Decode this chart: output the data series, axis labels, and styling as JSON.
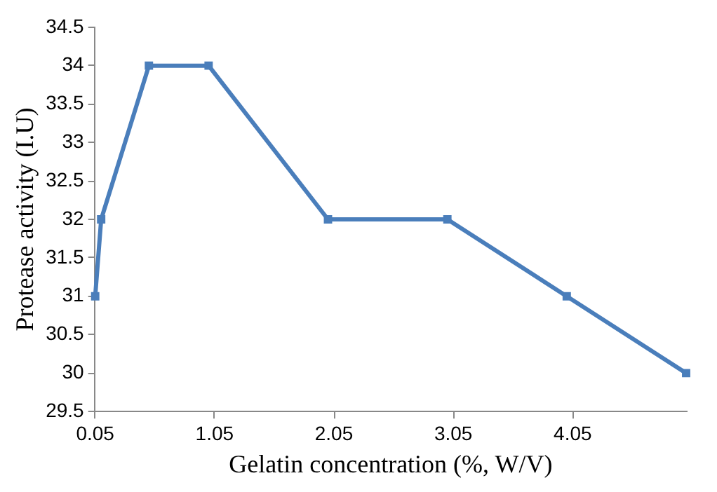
{
  "chart_data": {
    "type": "line",
    "xlabel": "Gelatin concentration (%, W/V)",
    "ylabel": "Protease activity (I.U)",
    "x": [
      0.05,
      0.1,
      0.5,
      1,
      2,
      3,
      4,
      5
    ],
    "series": [
      {
        "color": "#4a7ebb",
        "values": [
          31,
          32,
          34,
          34,
          32,
          32,
          31,
          30
        ]
      }
    ],
    "xlim": [
      0.05,
      5
    ],
    "xticks": [
      0.05,
      1.05,
      2.05,
      3.05,
      4.05
    ],
    "ylim": [
      29.5,
      34.5
    ],
    "yticks": [
      29.5,
      30,
      30.5,
      31,
      31.5,
      32,
      32.5,
      33,
      33.5,
      34,
      34.5
    ],
    "grid": false,
    "legend": false,
    "marker": "square",
    "line_style": "solid"
  }
}
